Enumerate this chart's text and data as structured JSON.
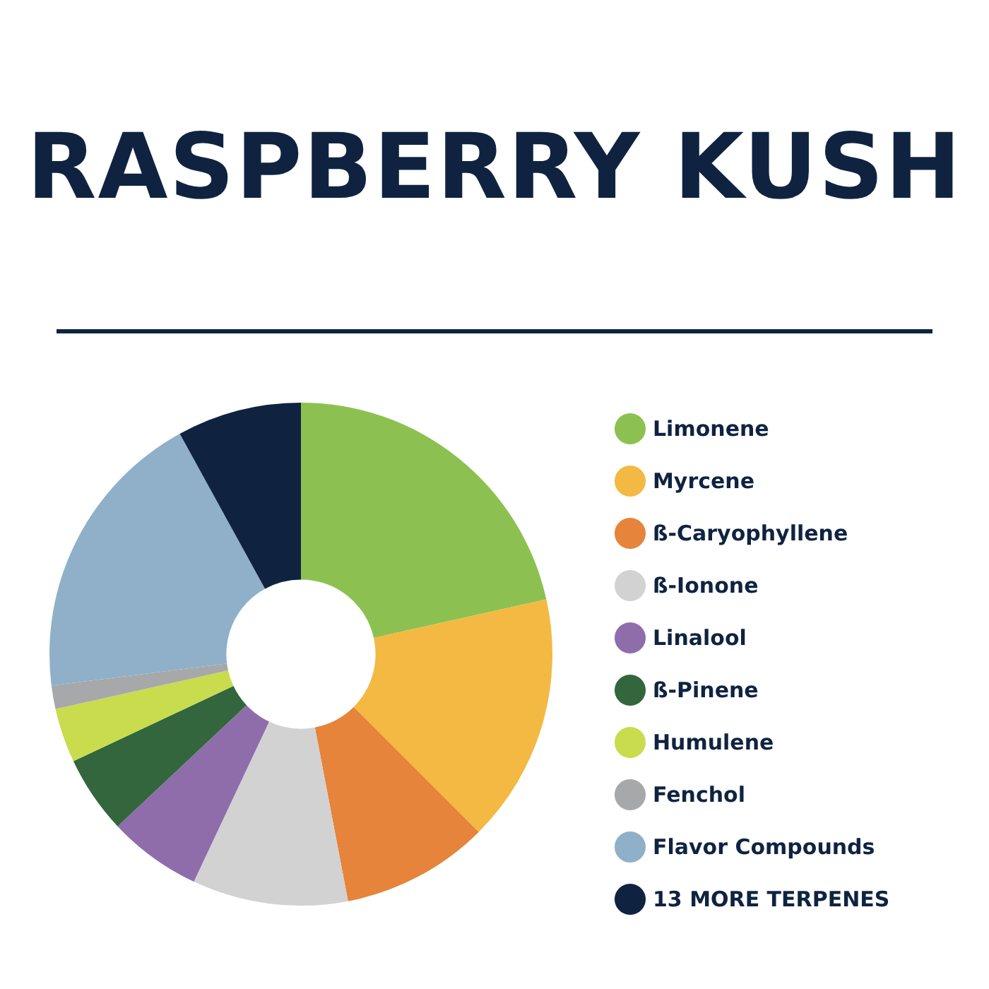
{
  "chart_data": {
    "type": "donut",
    "title": "RASPBERRY KUSH",
    "categories": [
      "Limonene",
      "Myrcene",
      "ß-Caryophyllene",
      "ß-Ionone",
      "Linalool",
      "ß-Pinene",
      "Humulene",
      "Fenchol",
      "Flavor Compounds",
      "13 MORE TERPENES"
    ],
    "values": [
      21.5,
      16,
      9.5,
      10,
      6,
      5,
      3.5,
      1.5,
      19,
      8
    ],
    "colors": [
      "#8cc152",
      "#f4b942",
      "#e5843a",
      "#d2d2d2",
      "#8f6dab",
      "#33663d",
      "#c8dc4e",
      "#a6a8aa",
      "#8fb0c8",
      "#0f2341"
    ],
    "legend": "right"
  }
}
